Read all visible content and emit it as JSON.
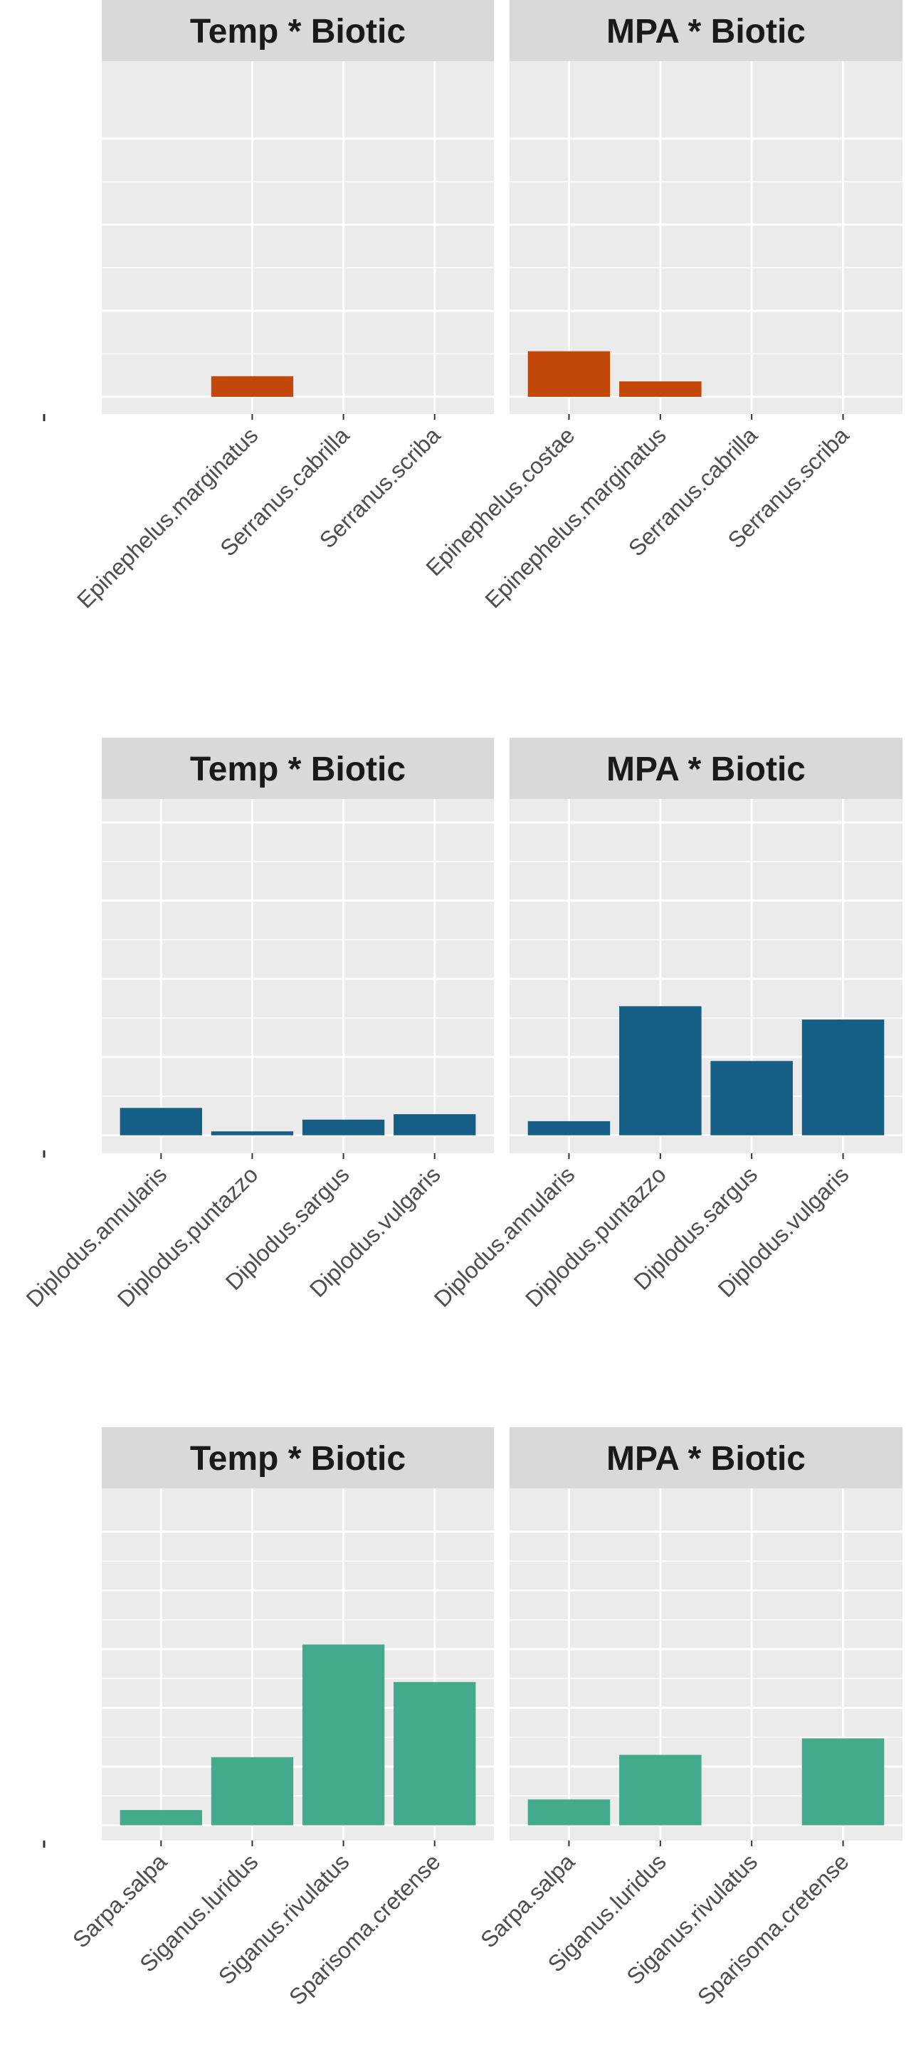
{
  "chart_data": [
    {
      "type": "bar",
      "title": "Temp * Biotic",
      "categories": [
        "Epinephelus.marginatus",
        "Serranus.cabrilla",
        "Serranus.scriba"
      ],
      "values": [
        0.24,
        0,
        0
      ],
      "color": "#c2470a",
      "ylim": [
        -0.2,
        3.9
      ],
      "yticks": [
        0,
        1,
        2,
        3
      ],
      "grid": true
    },
    {
      "type": "bar",
      "title": "MPA * Biotic",
      "categories": [
        "Epinephelus.costae",
        "Epinephelus.marginatus",
        "Serranus.cabrilla",
        "Serranus.scriba"
      ],
      "values": [
        0.53,
        0.18,
        0,
        0
      ],
      "color": "#c2470a",
      "ylim": [
        -0.2,
        3.9
      ],
      "yticks": [
        0,
        1,
        2,
        3
      ],
      "grid": true
    },
    {
      "type": "bar",
      "title": "Temp * Biotic",
      "categories": [
        "Diplodus.annularis",
        "Diplodus.puntazzo",
        "Diplodus.sargus",
        "Diplodus.vulgaris"
      ],
      "values": [
        0.35,
        0.05,
        0.2,
        0.27
      ],
      "color": "#155e86",
      "ylim": [
        -0.23,
        4.3
      ],
      "yticks": [
        0,
        1,
        2,
        3,
        4
      ],
      "grid": true
    },
    {
      "type": "bar",
      "title": "MPA * Biotic",
      "categories": [
        "Diplodus.annularis",
        "Diplodus.puntazzo",
        "Diplodus.sargus",
        "Diplodus.vulgaris"
      ],
      "values": [
        0.18,
        1.65,
        0.95,
        1.48
      ],
      "color": "#155e86",
      "ylim": [
        -0.23,
        4.3
      ],
      "yticks": [
        0,
        1,
        2,
        3,
        4
      ],
      "grid": true
    },
    {
      "type": "bar",
      "title": "Temp * Biotic",
      "categories": [
        "Sarpa.salpa",
        "Siganus.luridus",
        "Siganus.rivulatus",
        "Sparisoma.cretense"
      ],
      "values": [
        0.13,
        0.58,
        1.54,
        1.22
      ],
      "color": "#43aa8b",
      "ylim": [
        -0.13,
        2.87
      ],
      "yticks": [
        0,
        0.5,
        1,
        1.5,
        2,
        2.5
      ],
      "grid": true
    },
    {
      "type": "bar",
      "title": "MPA * Biotic",
      "categories": [
        "Sarpa.salpa",
        "Siganus.luridus",
        "Siganus.rivulatus",
        "Sparisoma.cretense"
      ],
      "values": [
        0.22,
        0.6,
        0,
        0.74
      ],
      "color": "#43aa8b",
      "ylim": [
        -0.13,
        2.87
      ],
      "yticks": [
        0,
        0.5,
        1,
        1.5,
        2,
        2.5
      ],
      "grid": true
    }
  ]
}
